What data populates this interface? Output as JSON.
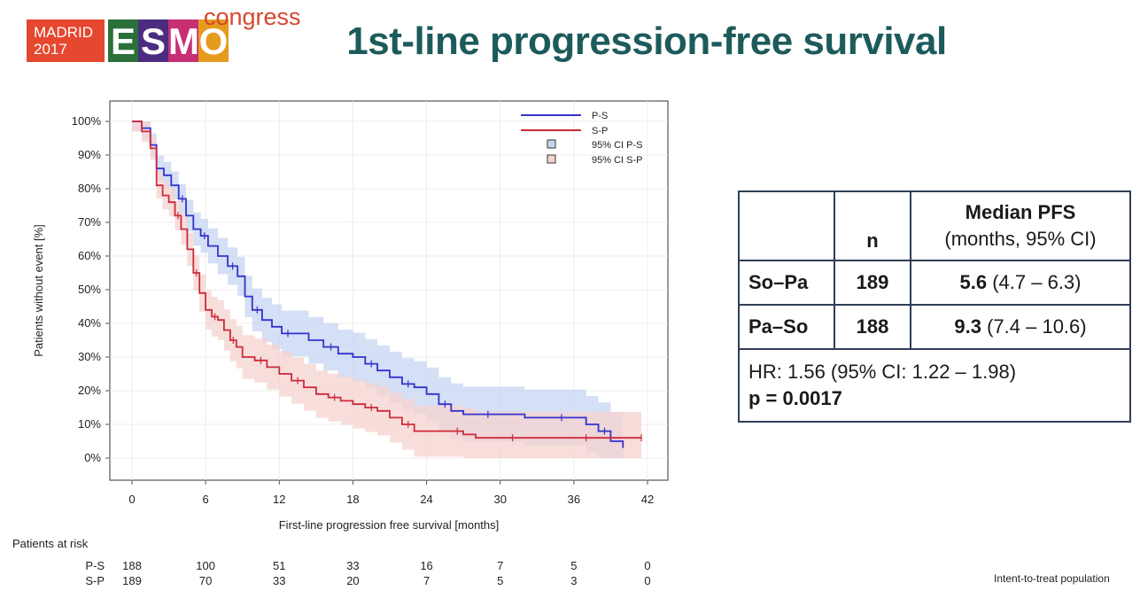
{
  "logo": {
    "city": "MADRID",
    "year": "2017",
    "brand_letters": [
      "E",
      "S",
      "M",
      "O"
    ],
    "brand_colors": [
      "#2b6f3a",
      "#4b2c80",
      "#c72f73",
      "#e59b1e"
    ],
    "suffix": "congress"
  },
  "slide": {
    "title": "1st-line progression-free survival",
    "footnote": "Intent-to-treat population"
  },
  "chart_data": {
    "type": "line",
    "subtype": "kaplan-meier step",
    "xlabel": "First-line progression free survival [months]",
    "ylabel": "Patients without event [%]",
    "xticks": [
      0,
      6,
      12,
      18,
      24,
      30,
      36,
      42
    ],
    "yticks": [
      "0%",
      "10%",
      "20%",
      "30%",
      "40%",
      "50%",
      "60%",
      "70%",
      "80%",
      "90%",
      "100%"
    ],
    "xlim": [
      -1,
      43
    ],
    "ylim": [
      -7,
      106
    ],
    "grid": true,
    "legend_position": "top-right",
    "legend": [
      "P-S",
      "S-P",
      "95% CI P-S",
      "95% CI S-P"
    ],
    "colors": {
      "P-S": "#3333cc",
      "S-P": "#cc2b3b",
      "ci_P-S": "#c7d4f2",
      "ci_S-P": "#f6d3cf"
    },
    "series": [
      {
        "name": "P-S",
        "x": [
          0,
          0.8,
          1.5,
          2,
          2.6,
          3.2,
          3.8,
          4.4,
          5,
          5.6,
          6.2,
          7,
          7.8,
          8.6,
          9.2,
          9.8,
          10.6,
          11.4,
          12.2,
          13.2,
          14.4,
          15.6,
          16.8,
          18,
          19,
          20,
          21,
          22,
          23,
          24,
          25,
          26,
          27,
          28,
          30,
          32,
          34,
          36,
          37,
          38,
          39,
          40
        ],
        "y": [
          100,
          98,
          93,
          86,
          84,
          81,
          77,
          72,
          68,
          66,
          63,
          60,
          57,
          54,
          48,
          44,
          41,
          39,
          37,
          37,
          35,
          33,
          31,
          30,
          28,
          26,
          24,
          22,
          21,
          19,
          16,
          14,
          13,
          13,
          13,
          12,
          12,
          12,
          10,
          8,
          5,
          3
        ]
      },
      {
        "name": "S-P",
        "x": [
          0,
          0.8,
          1.5,
          2,
          2.5,
          3,
          3.5,
          4,
          4.5,
          5,
          5.5,
          6,
          6.5,
          7,
          7.5,
          8,
          8.5,
          9,
          10,
          11,
          12,
          13,
          14,
          15,
          16,
          17,
          18,
          19,
          20,
          21,
          22,
          23,
          24,
          26,
          27,
          28,
          30,
          32,
          34,
          36,
          38,
          40,
          41.5
        ],
        "y": [
          100,
          97,
          92,
          81,
          78,
          76,
          72,
          68,
          62,
          55,
          49,
          44,
          42,
          41,
          38,
          35,
          33,
          30,
          29,
          27,
          25,
          23,
          21,
          19,
          18,
          17,
          16,
          15,
          14,
          12,
          10,
          8,
          8,
          8,
          7,
          6,
          6,
          6,
          6,
          6,
          6,
          6,
          6
        ]
      }
    ],
    "at_risk": {
      "title": "Patients at risk",
      "times": [
        0,
        6,
        12,
        18,
        24,
        30,
        36,
        42
      ],
      "rows": [
        {
          "label": "P-S",
          "values": [
            188,
            100,
            51,
            33,
            16,
            7,
            5,
            0
          ]
        },
        {
          "label": "S-P",
          "values": [
            189,
            70,
            33,
            20,
            7,
            5,
            3,
            0
          ]
        }
      ]
    }
  },
  "table": {
    "col_n": "n",
    "col_median_line1": "Median PFS",
    "col_median_line2": "(months, 95% CI)",
    "rows": [
      {
        "arm": "So–Pa",
        "n": "189",
        "median": "5.6",
        "ci": "(4.7 – 6.3)"
      },
      {
        "arm": "Pa–So",
        "n": "188",
        "median": "9.3",
        "ci": "(7.4 – 10.6)"
      }
    ],
    "hr": "HR: 1.56 (95% CI: 1.22 – 1.98)",
    "p": "p = 0.0017"
  }
}
